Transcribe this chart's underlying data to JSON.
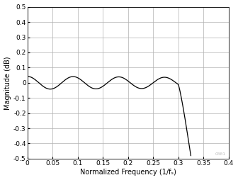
{
  "title": "",
  "xlabel": "Normalized Frequency (1/fₛ)",
  "ylabel": "Magnitude (dB)",
  "xlim": [
    0,
    0.4
  ],
  "ylim": [
    -0.5,
    0.5
  ],
  "xticks": [
    0,
    0.05,
    0.1,
    0.15,
    0.2,
    0.25,
    0.3,
    0.35,
    0.4
  ],
  "yticks": [
    -0.5,
    -0.4,
    -0.3,
    -0.2,
    -0.1,
    0.0,
    0.1,
    0.2,
    0.3,
    0.4,
    0.5
  ],
  "ytick_labels": [
    "-0.5",
    "-0.4",
    "-0.3",
    "-0.2",
    "-0.1",
    "0",
    "0.1",
    "0.2",
    "0.3",
    "0.4",
    "0.5"
  ],
  "xtick_labels": [
    "0",
    "0.05",
    "0.1",
    "0.15",
    "0.2",
    "0.25",
    "0.3",
    "0.35",
    "0.4"
  ],
  "line_color": "#000000",
  "line_width": 0.9,
  "bg_color": "#ffffff",
  "grid_color": "#b0b0b0",
  "font_size_label": 7.0,
  "font_size_tick": 6.5,
  "watermark": "C001",
  "watermark_color": "#bbbbbb",
  "watermark_fontsize": 4.5
}
